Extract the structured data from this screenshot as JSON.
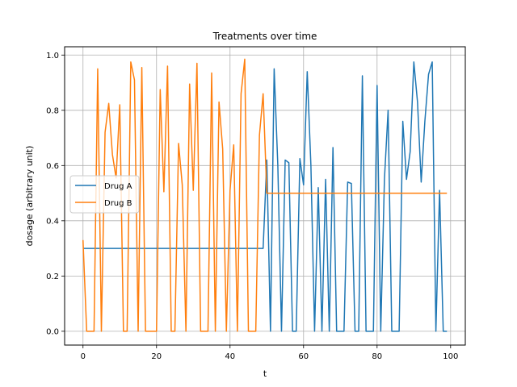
{
  "chart_data": {
    "type": "line",
    "title": "Treatments over time",
    "xlabel": "t",
    "ylabel": "dosage (arbitrary unit)",
    "xlim": [
      -5,
      104
    ],
    "ylim": [
      -0.05,
      1.03
    ],
    "xticks": [
      0,
      20,
      40,
      60,
      80,
      100
    ],
    "yticks": [
      "0.0",
      "0.2",
      "0.4",
      "0.6",
      "0.8",
      "1.0"
    ],
    "grid": true,
    "legend_position": "center-left",
    "series": [
      {
        "name": "Drug A",
        "color": "#1f77b4",
        "x": [
          0,
          49,
          50,
          51,
          52,
          53,
          54,
          55,
          56,
          57,
          58,
          59,
          60,
          61,
          62,
          63,
          64,
          65,
          66,
          67,
          68,
          69,
          70,
          71,
          72,
          73,
          74,
          75,
          76,
          77,
          78,
          79,
          80,
          81,
          82,
          83,
          84,
          85,
          86,
          87,
          88,
          89,
          90,
          91,
          92,
          93,
          94,
          95,
          96,
          97,
          98,
          99
        ],
        "y": [
          0.3,
          0.3,
          0.62,
          0.0,
          0.95,
          0.6,
          0.0,
          0.62,
          0.61,
          0.0,
          0.0,
          0.625,
          0.53,
          0.94,
          0.6,
          0.0,
          0.52,
          0.0,
          0.55,
          0.0,
          0.665,
          0.0,
          0.0,
          0.0,
          0.54,
          0.535,
          0.0,
          0.0,
          0.925,
          0.0,
          0.0,
          0.0,
          0.89,
          0.0,
          0.55,
          0.8,
          0.0,
          0.0,
          0.0,
          0.76,
          0.55,
          0.65,
          0.975,
          0.83,
          0.54,
          0.76,
          0.93,
          0.975,
          0.0,
          0.51,
          0.0,
          0.0
        ]
      },
      {
        "name": "Drug B",
        "color": "#ff7f0e",
        "x": [
          0,
          1,
          2,
          3,
          4,
          5,
          6,
          7,
          8,
          9,
          10,
          11,
          12,
          13,
          14,
          15,
          16,
          17,
          18,
          19,
          20,
          21,
          22,
          23,
          24,
          25,
          26,
          27,
          28,
          29,
          30,
          31,
          32,
          33,
          34,
          35,
          36,
          37,
          38,
          39,
          40,
          41,
          42,
          43,
          44,
          45,
          46,
          47,
          48,
          49,
          50,
          99
        ],
        "y": [
          0.33,
          0.0,
          0.0,
          0.0,
          0.95,
          0.0,
          0.72,
          0.825,
          0.64,
          0.555,
          0.82,
          0.0,
          0.0,
          0.975,
          0.91,
          0.0,
          0.955,
          0.0,
          0.0,
          0.0,
          0.0,
          0.875,
          0.505,
          0.96,
          0.0,
          0.0,
          0.68,
          0.53,
          0.0,
          0.895,
          0.51,
          0.97,
          0.0,
          0.0,
          0.0,
          0.935,
          0.0,
          0.83,
          0.66,
          0.0,
          0.51,
          0.675,
          0.0,
          0.86,
          0.985,
          0.0,
          0.0,
          0.0,
          0.71,
          0.86,
          0.5,
          0.5
        ]
      }
    ]
  }
}
